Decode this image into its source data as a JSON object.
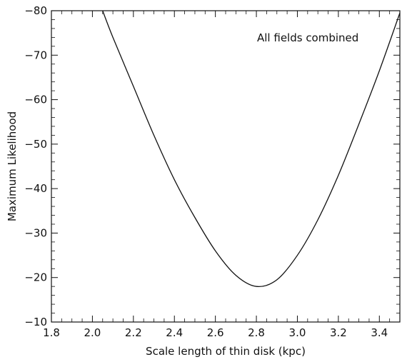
{
  "chart_data": {
    "type": "line",
    "xlabel": "Scale length of thin disk (kpc)",
    "ylabel": "Maximum Likelihood",
    "annotation": "All fields combined",
    "xlim": [
      1.8,
      3.5
    ],
    "ylim": [
      -10,
      -80
    ],
    "x_ticks": [
      1.8,
      2.0,
      2.2,
      2.4,
      2.6,
      2.8,
      3.0,
      3.2,
      3.4
    ],
    "y_ticks": [
      -10,
      -20,
      -30,
      -40,
      -50,
      -60,
      -70,
      -80
    ],
    "x_tick_labels": [
      "1.8",
      "2.0",
      "2.2",
      "2.4",
      "2.6",
      "2.8",
      "3.0",
      "3.2",
      "3.4"
    ],
    "y_tick_labels": [
      "−10",
      "−20",
      "−30",
      "−40",
      "−50",
      "−60",
      "−70",
      "−80"
    ],
    "grid": false,
    "series": [
      {
        "x": [
          2.05,
          2.1,
          2.2,
          2.3,
          2.4,
          2.5,
          2.6,
          2.7,
          2.8,
          2.9,
          3.0,
          3.1,
          3.2,
          3.3,
          3.4,
          3.5
        ],
        "y": [
          -80.0,
          -74.0,
          -63.0,
          -52.0,
          -42.0,
          -33.5,
          -26.0,
          -20.5,
          -18.0,
          -19.5,
          -25.0,
          -33.0,
          -43.0,
          -54.5,
          -66.5,
          -79.5
        ]
      }
    ],
    "color": "#111111"
  }
}
